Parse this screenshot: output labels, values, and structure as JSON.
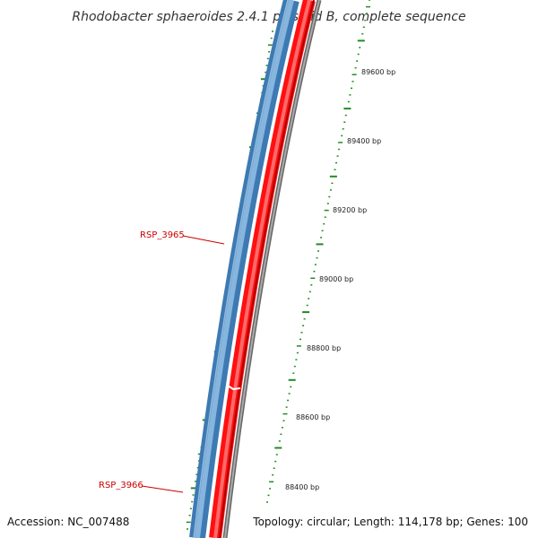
{
  "title": "Rhodobacter sphaeroides 2.4.1 plasmid B, complete sequence",
  "accession": "Accession: NC_007488",
  "summary": "Topology: circular; Length: 114,178 bp; Genes: 100",
  "colors": {
    "forward_strand": "#3d7ab3",
    "reverse_strand": "#ff1010",
    "backbone": "#888888",
    "tick": "#228b22",
    "gene_label": "#cc0000"
  },
  "scale_ticks": [
    {
      "label": "89600 bp"
    },
    {
      "label": "89400 bp"
    },
    {
      "label": "89200 bp"
    },
    {
      "label": "89000 bp"
    },
    {
      "label": "88800 bp"
    },
    {
      "label": "88600 bp"
    },
    {
      "label": "88400 bp"
    }
  ],
  "genes": [
    {
      "label": "RSP_3965"
    },
    {
      "label": "RSP_3966"
    }
  ]
}
